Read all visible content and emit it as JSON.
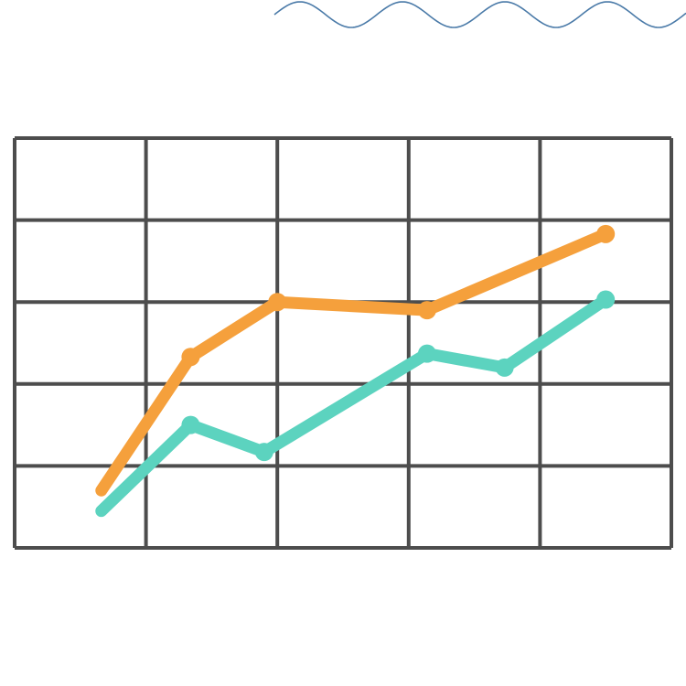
{
  "colors": {
    "background": "#ffffff",
    "grid": "#4d4d4d",
    "wave": "#4a7aa8",
    "series_orange": "#f5a03c",
    "series_teal": "#5cd3bf"
  },
  "icons": {
    "decoration": "wave-decoration-icon"
  },
  "chart_data": {
    "type": "line",
    "title": "",
    "xlabel": "",
    "ylabel": "",
    "grid": true,
    "xlim": [
      0,
      5
    ],
    "ylim": [
      0,
      5
    ],
    "series": [
      {
        "color": "#f5a03c",
        "x": [
          0.66,
          1.34,
          2.0,
          3.14,
          4.5
        ],
        "y": [
          0.7,
          2.33,
          3.0,
          2.9,
          3.83
        ]
      },
      {
        "color": "#5cd3bf",
        "x": [
          0.66,
          1.34,
          1.9,
          3.14,
          3.73,
          4.5
        ],
        "y": [
          0.45,
          1.5,
          1.17,
          2.37,
          2.2,
          3.03
        ]
      }
    ]
  }
}
